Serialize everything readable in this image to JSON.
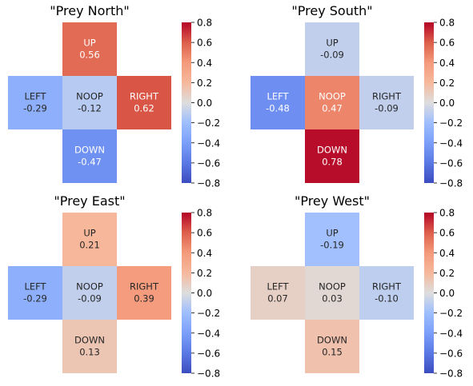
{
  "chart_data": [
    {
      "type": "heatmap",
      "title": "\"Prey North\"",
      "cells": [
        {
          "action": "UP",
          "value": 0.56,
          "value_label": "0.56"
        },
        {
          "action": "LEFT",
          "value": -0.29,
          "value_label": "-0.29"
        },
        {
          "action": "NOOP",
          "value": -0.12,
          "value_label": "-0.12"
        },
        {
          "action": "RIGHT",
          "value": 0.62,
          "value_label": "0.62"
        },
        {
          "action": "DOWN",
          "value": -0.47,
          "value_label": "-0.47"
        }
      ],
      "colorbar": {
        "range": [
          -0.8,
          0.8
        ],
        "ticks": [
          "0.8",
          "0.6",
          "0.4",
          "0.2",
          "0.0",
          "−0.2",
          "−0.4",
          "−0.6",
          "−0.8"
        ]
      }
    },
    {
      "type": "heatmap",
      "title": "\"Prey South\"",
      "cells": [
        {
          "action": "UP",
          "value": -0.09,
          "value_label": "-0.09"
        },
        {
          "action": "LEFT",
          "value": -0.48,
          "value_label": "-0.48"
        },
        {
          "action": "NOOP",
          "value": 0.47,
          "value_label": "0.47"
        },
        {
          "action": "RIGHT",
          "value": -0.09,
          "value_label": "-0.09"
        },
        {
          "action": "DOWN",
          "value": 0.78,
          "value_label": "0.78"
        }
      ],
      "colorbar": {
        "range": [
          -0.8,
          0.8
        ],
        "ticks": [
          "0.8",
          "0.6",
          "0.4",
          "0.2",
          "0.0",
          "−0.2",
          "−0.4",
          "−0.6",
          "−0.8"
        ]
      }
    },
    {
      "type": "heatmap",
      "title": "\"Prey East\"",
      "cells": [
        {
          "action": "UP",
          "value": 0.21,
          "value_label": "0.21"
        },
        {
          "action": "LEFT",
          "value": -0.29,
          "value_label": "-0.29"
        },
        {
          "action": "NOOP",
          "value": -0.09,
          "value_label": "-0.09"
        },
        {
          "action": "RIGHT",
          "value": 0.39,
          "value_label": "0.39"
        },
        {
          "action": "DOWN",
          "value": 0.13,
          "value_label": "0.13"
        }
      ],
      "colorbar": {
        "range": [
          -0.8,
          0.8
        ],
        "ticks": [
          "0.8",
          "0.6",
          "0.4",
          "0.2",
          "0.0",
          "−0.2",
          "−0.4",
          "−0.6",
          "−0.8"
        ]
      }
    },
    {
      "type": "heatmap",
      "title": "\"Prey West\"",
      "cells": [
        {
          "action": "UP",
          "value": -0.19,
          "value_label": "-0.19"
        },
        {
          "action": "LEFT",
          "value": 0.07,
          "value_label": "0.07"
        },
        {
          "action": "NOOP",
          "value": 0.03,
          "value_label": "0.03"
        },
        {
          "action": "RIGHT",
          "value": -0.1,
          "value_label": "-0.10"
        },
        {
          "action": "DOWN",
          "value": 0.15,
          "value_label": "0.15"
        }
      ],
      "colorbar": {
        "range": [
          -0.8,
          0.8
        ],
        "ticks": [
          "0.8",
          "0.6",
          "0.4",
          "0.2",
          "0.0",
          "−0.2",
          "−0.4",
          "−0.6",
          "−0.8"
        ]
      }
    }
  ]
}
